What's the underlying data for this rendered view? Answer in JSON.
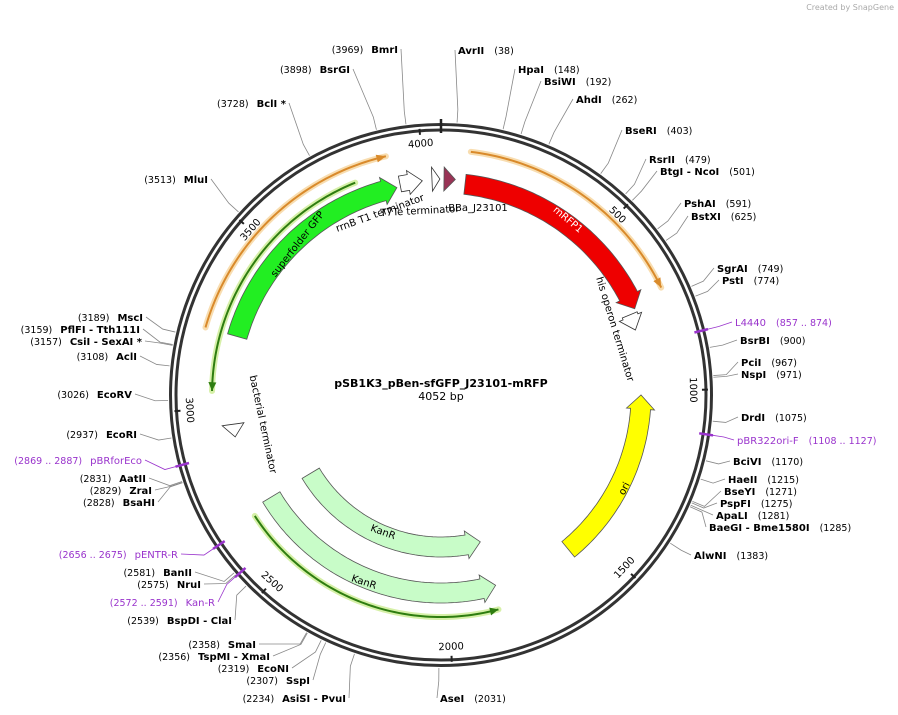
{
  "watermark": "Created by SnapGene",
  "map": {
    "name": "pSB1K3_pBen-sfGFP_J23101-mRFP",
    "length_label": "4052 bp",
    "ticks": [
      500,
      1000,
      1500,
      2000,
      2500,
      3000,
      3500,
      4000
    ]
  },
  "sites": [
    {
      "name": "AvrII",
      "site": "(38)"
    },
    {
      "name": "HpaI",
      "site": "(148)"
    },
    {
      "name": "BsiWI",
      "site": "(192)"
    },
    {
      "name": "AhdI",
      "site": "(262)"
    },
    {
      "name": "BseRI",
      "site": "(403)"
    },
    {
      "name": "RsrII",
      "site": "(479)"
    },
    {
      "name": "BtgI - NcoI",
      "site": "(501)"
    },
    {
      "name": "PshAI",
      "site": "(591)"
    },
    {
      "name": "BstXI",
      "site": "(625)"
    },
    {
      "name": "SgrAI",
      "site": "(749)"
    },
    {
      "name": "PstI",
      "site": "(774)"
    },
    {
      "name": "L4440",
      "site": "(857 .. 874)",
      "color": "#9933cc"
    },
    {
      "name": "BsrBI",
      "site": "(900)"
    },
    {
      "name": "PciI",
      "site": "(967)"
    },
    {
      "name": "NspI",
      "site": "(971)"
    },
    {
      "name": "DrdI",
      "site": "(1075)"
    },
    {
      "name": "pBR322ori-F",
      "site": "(1108 .. 1127)",
      "color": "#9933cc"
    },
    {
      "name": "BciVI",
      "site": "(1170)"
    },
    {
      "name": "HaeII",
      "site": "(1215)"
    },
    {
      "name": "BseYI",
      "site": "(1271)"
    },
    {
      "name": "PspFI",
      "site": "(1275)"
    },
    {
      "name": "ApaLI",
      "site": "(1281)"
    },
    {
      "name": "BaeGI - Bme1580I",
      "site": "(1285)"
    },
    {
      "name": "AlwNI",
      "site": "(1383)"
    },
    {
      "name": "AseI",
      "site": "(2031)"
    },
    {
      "name": "AsiSI - PvuI",
      "site": "(2234)"
    },
    {
      "name": "SspI",
      "site": "(2307)"
    },
    {
      "name": "EcoNI",
      "site": "(2319)"
    },
    {
      "name": "TspMI - XmaI",
      "site": "(2356)"
    },
    {
      "name": "SmaI",
      "site": "(2358)"
    },
    {
      "name": "BspDI - ClaI",
      "site": "(2539)"
    },
    {
      "name": "Kan-R",
      "site": "(2572 .. 2591)",
      "color": "#9933cc"
    },
    {
      "name": "NruI",
      "site": "(2575)"
    },
    {
      "name": "BanII",
      "site": "(2581)"
    },
    {
      "name": "pENTR-R",
      "site": "(2656 .. 2675)",
      "color": "#9933cc"
    },
    {
      "name": "BsaHI",
      "site": "(2828)"
    },
    {
      "name": "ZraI",
      "site": "(2829)"
    },
    {
      "name": "AatII",
      "site": "(2831)"
    },
    {
      "name": "pBRforEco",
      "site": "(2869 .. 2887)",
      "color": "#9933cc"
    },
    {
      "name": "EcoRI",
      "site": "(2937)"
    },
    {
      "name": "EcoRV",
      "site": "(3026)"
    },
    {
      "name": "AclI",
      "site": "(3108)"
    },
    {
      "name": "CsiI - SexAI *",
      "site": "(3157)"
    },
    {
      "name": "PflFI - Tth111I",
      "site": "(3159)"
    },
    {
      "name": "MscI",
      "site": "(3189)"
    },
    {
      "name": "MluI",
      "site": "(3513)"
    },
    {
      "name": "BclI *",
      "site": "(3728)"
    },
    {
      "name": "BsrGI",
      "site": "(3898)"
    },
    {
      "name": "BmrI",
      "site": "(3969)"
    }
  ],
  "features": [
    {
      "name": "mRFP1",
      "color": "#ee0000"
    },
    {
      "name": "BBa_J23101",
      "color": "#993355"
    },
    {
      "name": "T7Te terminator",
      "color": "#ffffff"
    },
    {
      "name": "rrnB T1 terminator",
      "color": "#ffffff"
    },
    {
      "name": "superfolder GFP",
      "color": "#22ee22"
    },
    {
      "name": "his operon terminator",
      "color": "#ffffff"
    },
    {
      "name": "ori",
      "color": "#ffff00"
    },
    {
      "name": "bacterial terminator",
      "color": "#ffffff"
    },
    {
      "name": "KanR",
      "color": "#c8fcc8"
    },
    {
      "name": "KanR",
      "color": "#c8fcc8"
    }
  ]
}
